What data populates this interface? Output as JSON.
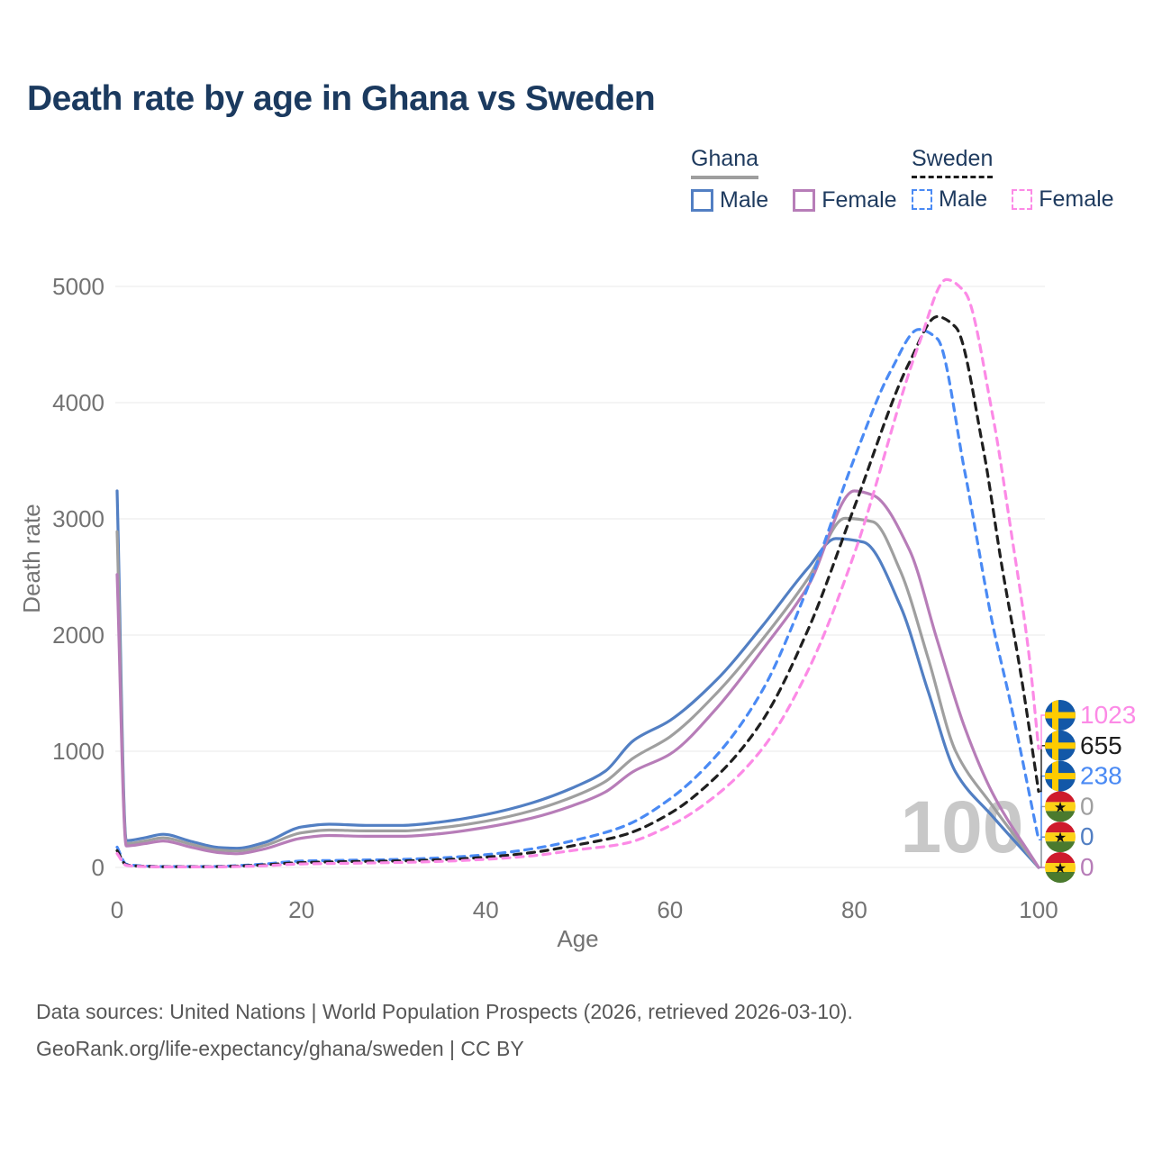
{
  "title": "Death rate by age in Ghana vs Sweden",
  "legend": {
    "groups": [
      {
        "label": "Ghana",
        "underline_style": "solid",
        "underline_color": "#9e9e9e",
        "items": [
          {
            "label": "Male",
            "color": "#527fc3",
            "dashed": false
          },
          {
            "label": "Female",
            "color": "#b77db8",
            "dashed": false
          }
        ]
      },
      {
        "label": "Sweden",
        "underline_style": "dashed",
        "underline_color": "#1c1c1c",
        "items": [
          {
            "label": "Male",
            "color": "#4a8af4",
            "dashed": true
          },
          {
            "label": "Female",
            "color": "#fc8ae6",
            "dashed": true
          }
        ]
      }
    ]
  },
  "watermark": "100",
  "footer": {
    "line1": "Data sources: United Nations | World Population Prospects (2026, retrieved 2026-03-10).",
    "line2": "GeoRank.org/life-expectancy/ghana/sweden | CC BY"
  },
  "chart_data": {
    "type": "line",
    "title": "Death rate by age in Ghana vs Sweden",
    "xlabel": "Age",
    "ylabel": "Death rate",
    "xlim": [
      0,
      100
    ],
    "ylim": [
      0,
      5000
    ],
    "x_ticks": [
      0,
      20,
      40,
      60,
      80,
      100
    ],
    "y_ticks": [
      0,
      1000,
      2000,
      3000,
      4000,
      5000
    ],
    "grid": true,
    "legend_position": "top-right",
    "colors": {
      "grid": "#e9e9e9",
      "axis_text": "#737373",
      "watermark": "#c8c8c8",
      "flags": {
        "sweden": {
          "field": "#1358a8",
          "cross": "#fecb00"
        },
        "ghana": {
          "red": "#ce1b2c",
          "yellow": "#fcd116",
          "green": "#4a7a2e",
          "star": "#111111"
        }
      }
    },
    "series": [
      {
        "name": "Ghana Male",
        "country": "ghana",
        "sex": "male",
        "color": "#527fc3",
        "dashed": false,
        "end_label": "0",
        "end_label_rank": 1,
        "points": [
          [
            0,
            3240
          ],
          [
            1,
            230
          ],
          [
            3,
            255
          ],
          [
            5,
            285
          ],
          [
            8,
            225
          ],
          [
            11,
            172
          ],
          [
            13,
            165
          ],
          [
            16,
            215
          ],
          [
            20,
            348
          ],
          [
            23,
            372
          ],
          [
            27,
            362
          ],
          [
            31,
            362
          ],
          [
            35,
            390
          ],
          [
            40,
            455
          ],
          [
            45,
            555
          ],
          [
            50,
            705
          ],
          [
            53,
            830
          ],
          [
            56,
            1090
          ],
          [
            60,
            1265
          ],
          [
            65,
            1610
          ],
          [
            70,
            2075
          ],
          [
            75,
            2580
          ],
          [
            78,
            2830
          ],
          [
            81,
            2800
          ],
          [
            85,
            2250
          ],
          [
            88,
            1520
          ],
          [
            91,
            820
          ],
          [
            95,
            440
          ],
          [
            100,
            0
          ]
        ]
      },
      {
        "name": "Ghana Total",
        "country": "ghana",
        "sex": "total",
        "color": "#9f9f9f",
        "dashed": false,
        "end_label": "0",
        "end_label_rank": 2,
        "points": [
          [
            0,
            2890
          ],
          [
            1,
            205
          ],
          [
            3,
            228
          ],
          [
            5,
            255
          ],
          [
            8,
            200
          ],
          [
            11,
            150
          ],
          [
            13,
            142
          ],
          [
            16,
            188
          ],
          [
            20,
            298
          ],
          [
            23,
            322
          ],
          [
            27,
            315
          ],
          [
            31,
            315
          ],
          [
            35,
            340
          ],
          [
            40,
            398
          ],
          [
            45,
            488
          ],
          [
            50,
            625
          ],
          [
            53,
            740
          ],
          [
            56,
            940
          ],
          [
            60,
            1125
          ],
          [
            65,
            1495
          ],
          [
            70,
            1960
          ],
          [
            75,
            2490
          ],
          [
            79,
            3005
          ],
          [
            82,
            2975
          ],
          [
            85,
            2550
          ],
          [
            88,
            1805
          ],
          [
            91,
            1000
          ],
          [
            95,
            530
          ],
          [
            100,
            0
          ]
        ]
      },
      {
        "name": "Ghana Female",
        "country": "ghana",
        "sex": "female",
        "color": "#b77db8",
        "dashed": false,
        "end_label": "0",
        "end_label_rank": 0,
        "points": [
          [
            0,
            2520
          ],
          [
            1,
            185
          ],
          [
            3,
            205
          ],
          [
            5,
            228
          ],
          [
            8,
            175
          ],
          [
            11,
            128
          ],
          [
            13,
            118
          ],
          [
            16,
            160
          ],
          [
            20,
            252
          ],
          [
            23,
            275
          ],
          [
            27,
            268
          ],
          [
            31,
            268
          ],
          [
            35,
            290
          ],
          [
            40,
            345
          ],
          [
            45,
            425
          ],
          [
            50,
            548
          ],
          [
            53,
            650
          ],
          [
            56,
            825
          ],
          [
            60,
            975
          ],
          [
            65,
            1365
          ],
          [
            70,
            1870
          ],
          [
            75,
            2425
          ],
          [
            80,
            3240
          ],
          [
            82,
            3205
          ],
          [
            86,
            2730
          ],
          [
            89,
            1955
          ],
          [
            92,
            1200
          ],
          [
            95,
            640
          ],
          [
            100,
            0
          ]
        ]
      },
      {
        "name": "Sweden Male",
        "country": "sweden",
        "sex": "male",
        "color": "#4a8af4",
        "dashed": true,
        "end_label": "238",
        "end_label_rank": 3,
        "points": [
          [
            0,
            175
          ],
          [
            1,
            28
          ],
          [
            3,
            12
          ],
          [
            5,
            8
          ],
          [
            10,
            8
          ],
          [
            15,
            24
          ],
          [
            20,
            55
          ],
          [
            25,
            62
          ],
          [
            30,
            68
          ],
          [
            35,
            82
          ],
          [
            40,
            110
          ],
          [
            45,
            160
          ],
          [
            50,
            240
          ],
          [
            55,
            355
          ],
          [
            60,
            590
          ],
          [
            65,
            960
          ],
          [
            70,
            1520
          ],
          [
            75,
            2420
          ],
          [
            80,
            3520
          ],
          [
            84,
            4280
          ],
          [
            87,
            4630
          ],
          [
            89,
            4550
          ],
          [
            92,
            3400
          ],
          [
            95,
            2100
          ],
          [
            97,
            1400
          ],
          [
            100,
            238
          ]
        ]
      },
      {
        "name": "Sweden Total",
        "country": "sweden",
        "sex": "total",
        "color": "#1f1f1f",
        "dashed": true,
        "end_label": "655",
        "end_label_rank": 4,
        "points": [
          [
            0,
            145
          ],
          [
            1,
            22
          ],
          [
            3,
            10
          ],
          [
            5,
            6
          ],
          [
            10,
            6
          ],
          [
            15,
            18
          ],
          [
            20,
            42
          ],
          [
            25,
            50
          ],
          [
            30,
            55
          ],
          [
            35,
            66
          ],
          [
            40,
            88
          ],
          [
            45,
            128
          ],
          [
            50,
            195
          ],
          [
            55,
            280
          ],
          [
            60,
            465
          ],
          [
            65,
            780
          ],
          [
            70,
            1260
          ],
          [
            75,
            2050
          ],
          [
            80,
            3100
          ],
          [
            86,
            4350
          ],
          [
            89,
            4740
          ],
          [
            91,
            4650
          ],
          [
            94,
            3600
          ],
          [
            96,
            2600
          ],
          [
            98,
            1700
          ],
          [
            100,
            655
          ]
        ]
      },
      {
        "name": "Sweden Female",
        "country": "sweden",
        "sex": "female",
        "color": "#fc8ae6",
        "dashed": true,
        "end_label": "1023",
        "end_label_rank": 5,
        "points": [
          [
            0,
            120
          ],
          [
            1,
            18
          ],
          [
            3,
            8
          ],
          [
            5,
            5
          ],
          [
            10,
            5
          ],
          [
            15,
            12
          ],
          [
            20,
            30
          ],
          [
            25,
            36
          ],
          [
            30,
            42
          ],
          [
            35,
            52
          ],
          [
            40,
            70
          ],
          [
            45,
            100
          ],
          [
            50,
            152
          ],
          [
            55,
            205
          ],
          [
            60,
            360
          ],
          [
            65,
            620
          ],
          [
            70,
            1020
          ],
          [
            75,
            1700
          ],
          [
            80,
            2700
          ],
          [
            87,
            4500
          ],
          [
            90,
            5060
          ],
          [
            92,
            4950
          ],
          [
            95,
            3900
          ],
          [
            97,
            2900
          ],
          [
            99,
            1800
          ],
          [
            100,
            1023
          ]
        ]
      }
    ]
  }
}
